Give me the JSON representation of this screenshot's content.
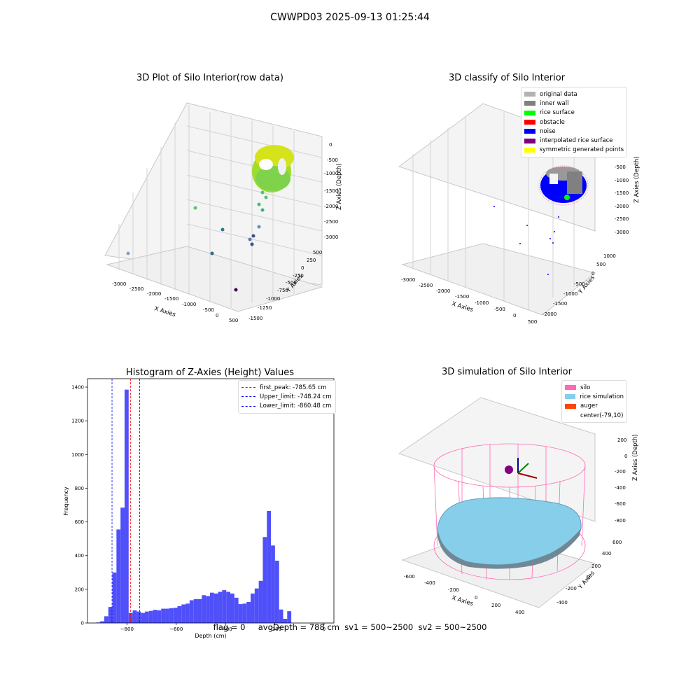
{
  "figure": {
    "suptitle": "CWWPD03 2025-09-13 01:25:44",
    "footer": "flag = 0     avgDepth = 788 cm  sv1 = 500~2500  sv2 = 500~2500"
  },
  "panels": {
    "raw3d": {
      "title": "3D Plot of Silo Interior(row data)",
      "xlabel": "X Axies",
      "ylabel": "Y Axies",
      "zlabel": "Z Axies (Depth)",
      "xticks": [
        "-3000",
        "-2500",
        "-2000",
        "-1500",
        "-1000",
        "-500",
        "0",
        "500"
      ],
      "yticks": [
        "500",
        "250",
        "0",
        "-250",
        "-500",
        "-750",
        "-1000",
        "-1250",
        "-1500"
      ],
      "zticks": [
        "0",
        "-500",
        "-1000",
        "-1500",
        "-2000",
        "-2500",
        "-3000"
      ]
    },
    "classify3d": {
      "title": "3D classify of Silo Interior",
      "xlabel": "X Axies",
      "ylabel": "Y Axies",
      "zlabel": "Z Axies (Depth)",
      "xticks": [
        "-3000",
        "-2500",
        "-2000",
        "-1500",
        "-1000",
        "-500",
        "0",
        "500"
      ],
      "yticks": [
        "1000",
        "500",
        "0",
        "-500",
        "-1000",
        "-1500",
        "-2000"
      ],
      "zticks": [
        "0",
        "-500",
        "-1000",
        "-1500",
        "-2000",
        "-2500",
        "-3000"
      ],
      "ztop": "0",
      "legend": [
        {
          "label": "original data",
          "color": "#b3b3b3"
        },
        {
          "label": "inner wall",
          "color": "#808080"
        },
        {
          "label": "rice surface",
          "color": "#00ff00"
        },
        {
          "label": "obstacle",
          "color": "#ff0000"
        },
        {
          "label": "noise",
          "color": "#0000ff"
        },
        {
          "label": "interpolated rice surface",
          "color": "#800080"
        },
        {
          "label": "symmetric generated points",
          "color": "#ffff00"
        }
      ]
    },
    "simulation3d": {
      "title": "3D simulation of Silo Interior",
      "xlabel": "X Axies",
      "ylabel": "Y Axies",
      "zlabel": "Z Axies (Depth)",
      "xticks": [
        "-600",
        "-400",
        "-200",
        "0",
        "200",
        "400"
      ],
      "yticks": [
        "600",
        "400",
        "200",
        "0",
        "-200",
        "-400"
      ],
      "zticks": [
        "200",
        "0",
        "-200",
        "-400",
        "-600",
        "-800"
      ],
      "legend": [
        {
          "label": "silo",
          "color": "#ff69b4"
        },
        {
          "label": "rice simulation",
          "color": "#87ceeb"
        },
        {
          "label": "auger",
          "color": "#ff4500"
        },
        {
          "label": "center(-79,10)",
          "color": "#ffffff"
        }
      ]
    }
  },
  "chart_data": [
    {
      "type": "bar",
      "title": "Histogram of Z-Axies (Height) Values",
      "xlabel": "Depth (cm)",
      "ylabel": "Frequency",
      "xlim": [
        -960,
        40
      ],
      "ylim": [
        0,
        1450
      ],
      "xticks": [
        -800,
        -600,
        -400,
        -200,
        0
      ],
      "yticks": [
        0,
        200,
        400,
        600,
        800,
        1000,
        1200,
        1400
      ],
      "bar_color": "#5050fa",
      "bin_width": 16.5,
      "bin_starts": [
        -925,
        -908.5,
        -892,
        -875.5,
        -859,
        -842.5,
        -826,
        -809.5,
        -793,
        -776.5,
        -760,
        -743.5,
        -727,
        -710.5,
        -694,
        -677.5,
        -661,
        -644.5,
        -628,
        -611.5,
        -595,
        -578.5,
        -562,
        -545.5,
        -529,
        -512.5,
        -496,
        -479.5,
        -463,
        -446.5,
        -430,
        -413.5,
        -397,
        -380.5,
        -364,
        -347.5,
        -331,
        -314.5,
        -298,
        -281.5,
        -265,
        -248.5,
        -232,
        -215.5,
        -199,
        -182.5,
        -166,
        -149.5,
        -133,
        -116.5,
        -100,
        -83.5,
        -67,
        -50.5,
        -34,
        -17.5,
        -1
      ],
      "values": [
        3,
        10,
        40,
        95,
        300,
        555,
        685,
        1385,
        60,
        75,
        68,
        60,
        68,
        72,
        78,
        75,
        85,
        85,
        88,
        90,
        100,
        110,
        115,
        135,
        142,
        142,
        165,
        160,
        180,
        175,
        185,
        195,
        185,
        175,
        150,
        112,
        115,
        125,
        175,
        205,
        250,
        510,
        665,
        460,
        370,
        80,
        25,
        70,
        0,
        0,
        0,
        0,
        0,
        0,
        0,
        0,
        0
      ],
      "vlines": [
        {
          "label": "first_peak: -785.65 cm",
          "x": -785.65,
          "color": "#ff0000"
        },
        {
          "label": "Upper_limit: -748.24 cm",
          "x": -748.24,
          "color": "#0000ff"
        },
        {
          "label": "Lower_limit: -860.48 cm",
          "x": -860.48,
          "color": "#0000ff"
        }
      ]
    }
  ]
}
